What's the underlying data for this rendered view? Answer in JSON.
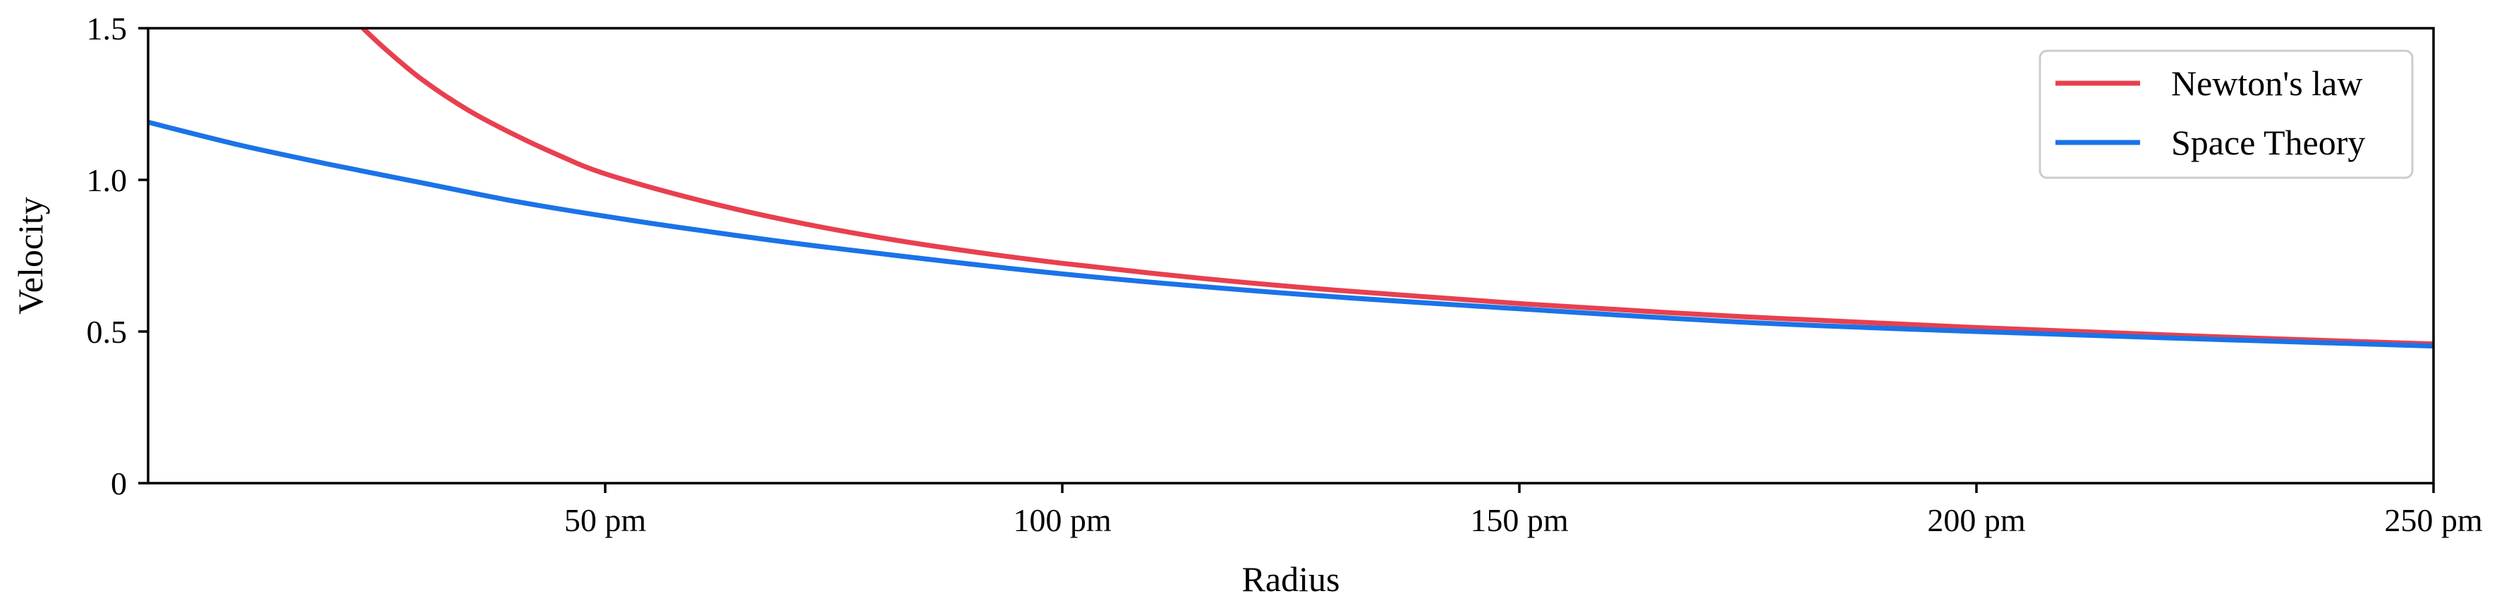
{
  "chart_data": {
    "type": "line",
    "title": "",
    "xlabel": "Radius",
    "ylabel": "Velocity",
    "xlim": [
      0,
      250
    ],
    "ylim": [
      0,
      1.5
    ],
    "x_ticks": [
      {
        "value": 50,
        "label": "50 pm"
      },
      {
        "value": 100,
        "label": "100 pm"
      },
      {
        "value": 150,
        "label": "150 pm"
      },
      {
        "value": 200,
        "label": "200 pm"
      },
      {
        "value": 250,
        "label": "250 pm"
      }
    ],
    "y_ticks": [
      {
        "value": 0,
        "label": "0"
      },
      {
        "value": 0.5,
        "label": "0.5"
      },
      {
        "value": 1.0,
        "label": "1.0"
      },
      {
        "value": 1.5,
        "label": "1.5"
      }
    ],
    "grid": false,
    "legend_position": "top-right",
    "series": [
      {
        "name": "Newton's law",
        "color": "#e8404f",
        "x": [
          23.5,
          26,
          30,
          35,
          40,
          45,
          50,
          60,
          70,
          80,
          90,
          100,
          115,
          130,
          150,
          175,
          200,
          225,
          250
        ],
        "y": [
          1.5,
          1.43,
          1.33,
          1.23,
          1.15,
          1.08,
          1.02,
          0.935,
          0.866,
          0.81,
          0.764,
          0.725,
          0.676,
          0.636,
          0.592,
          0.548,
          0.513,
          0.484,
          0.459
        ]
      },
      {
        "name": "Space Theory",
        "color": "#1a73e8",
        "x": [
          0,
          10,
          20,
          30,
          40,
          50,
          60,
          75,
          100,
          125,
          150,
          175,
          200,
          225,
          250
        ],
        "y": [
          1.19,
          1.115,
          1.05,
          0.99,
          0.93,
          0.88,
          0.835,
          0.775,
          0.69,
          0.625,
          0.575,
          0.53,
          0.5,
          0.475,
          0.452
        ]
      }
    ]
  }
}
